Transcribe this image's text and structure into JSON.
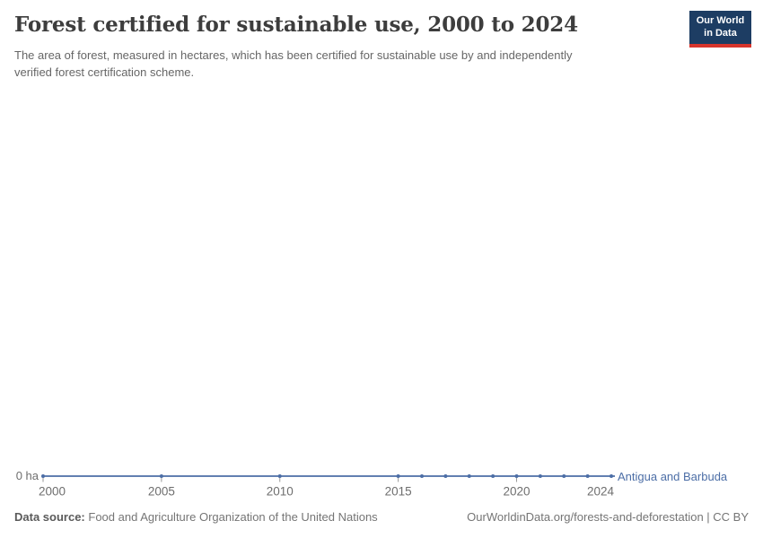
{
  "header": {
    "title": "Forest certified for sustainable use, 2000 to 2024",
    "subtitle_lines": [
      "The area of forest, measured in hectares, which has been certified for sustainable use by and independently",
      "verified forest certification scheme."
    ],
    "logo": {
      "line1": "Our World",
      "line2": "in Data",
      "bg_color": "#1d3d63",
      "stripe_color": "#d7352c",
      "text_color": "#ffffff"
    }
  },
  "chart_data": {
    "type": "line",
    "title": "Forest certified for sustainable use, 2000 to 2024",
    "unit": "hectares",
    "x": [
      2000,
      2005,
      2010,
      2015,
      2016,
      2017,
      2018,
      2019,
      2020,
      2021,
      2022,
      2023,
      2024
    ],
    "series": [
      {
        "name": "Antigua and Barbuda",
        "color": "#4c6ea6",
        "values": [
          0,
          0,
          0,
          0,
          0,
          0,
          0,
          0,
          0,
          0,
          0,
          0,
          0
        ]
      }
    ],
    "xlim": [
      2000,
      2024
    ],
    "ylim": [
      0,
      0
    ],
    "y_baseline_label": "0 ha",
    "x_tick_years": [
      2000,
      2005,
      2010,
      2015,
      2020,
      2024
    ],
    "x_tick_labels": [
      "2000",
      "2005",
      "2010",
      "2015",
      "2020",
      "2024"
    ],
    "tick_mark_years": [
      2000,
      2005,
      2010,
      2015,
      2020
    ],
    "grid": false,
    "legend_position": "end-of-line"
  },
  "footer": {
    "source_label": "Data source:",
    "source_text": "Food and Agriculture Organization of the United Nations",
    "attribution": "OurWorldinData.org/forests-and-deforestation | CC BY"
  },
  "colors": {
    "title": "#3d3d3d",
    "subtitle": "#666666",
    "axis_text": "#6e6e6e",
    "footer_text": "#757575",
    "line": "#4c6ea6",
    "tick_mark": "#999999"
  }
}
